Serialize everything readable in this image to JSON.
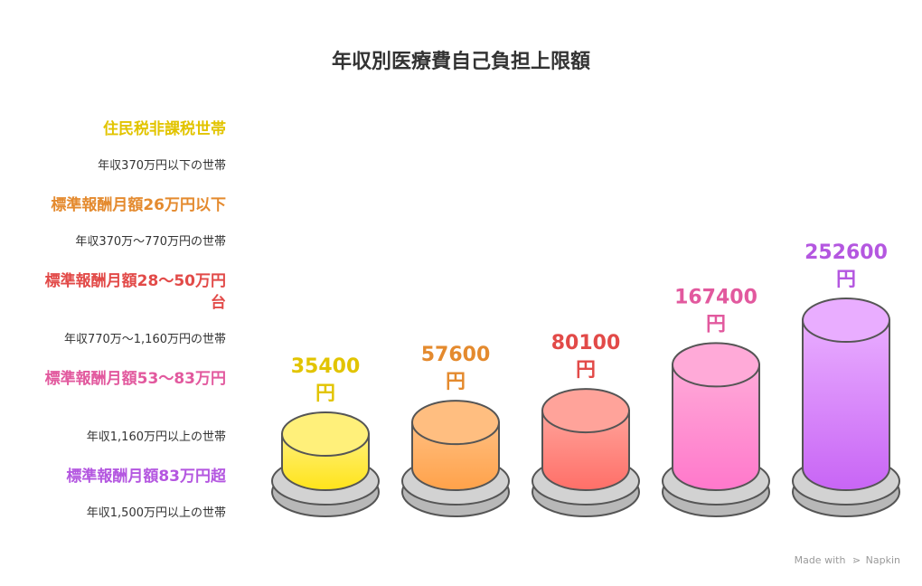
{
  "chart_data": {
    "type": "bar",
    "title": "年収別医療費自己負担上限額",
    "series": [
      {
        "category": "住民税非課税世帯",
        "description": "年収370万円以下の世帯",
        "value": 35400,
        "label": "35400",
        "unit": "円",
        "color": "#e2c400",
        "top": "#fff07a",
        "bottom": "#ffe41a"
      },
      {
        "category": "標準報酬月額26万円以下",
        "description": "年収370万〜770万円の世帯",
        "value": 57600,
        "label": "57600",
        "unit": "円",
        "color": "#e48a2e",
        "top": "#ffbe80",
        "bottom": "#ffa24a"
      },
      {
        "category": "標準報酬月額28〜50万円台",
        "description": "年収770万〜1,160万円の世帯",
        "value": 80100,
        "label": "80100",
        "unit": "円",
        "color": "#e24a48",
        "top": "#ffa39a",
        "bottom": "#ff6f68"
      },
      {
        "category": "標準報酬月額53〜83万円",
        "description": "年収1,160万円以上の世帯",
        "value": 167400,
        "label": "167400",
        "unit": "円",
        "color": "#e2599e",
        "top": "#ffaad8",
        "bottom": "#ff78cb"
      },
      {
        "category": "標準報酬月額83万円超",
        "description": "年収1,500万円以上の世帯",
        "value": 252600,
        "label": "252600",
        "unit": "円",
        "color": "#b457e0",
        "top": "#e9adff",
        "bottom": "#c865f5"
      }
    ]
  },
  "watermark": {
    "made_with": "Made with",
    "brand": "Napkin"
  }
}
